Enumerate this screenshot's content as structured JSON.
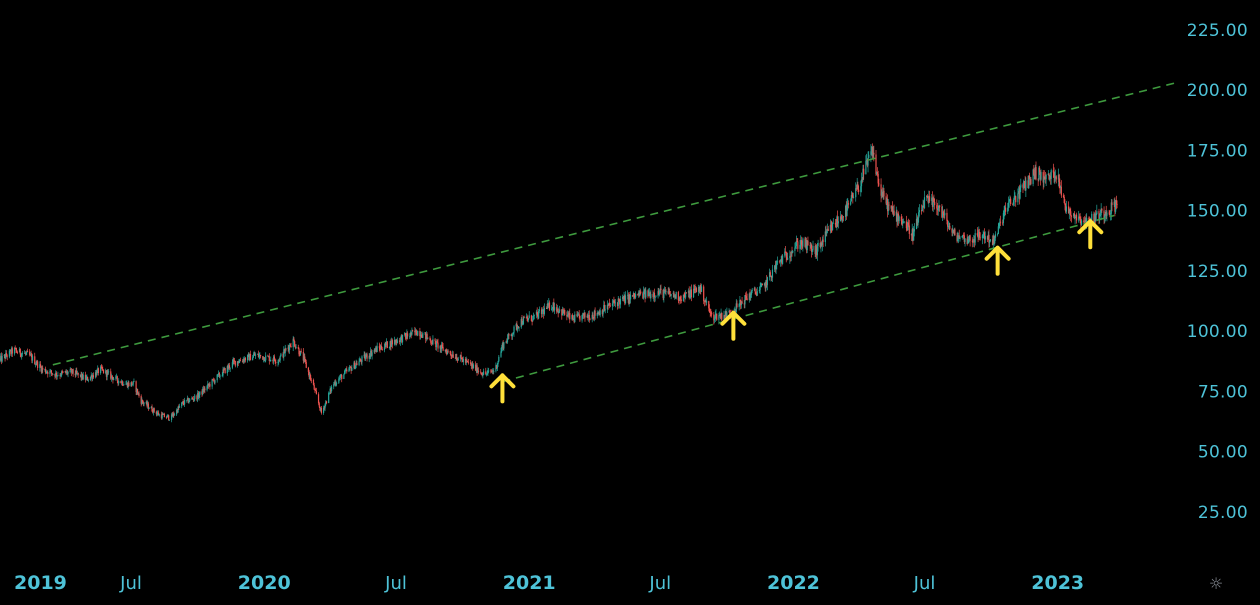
{
  "chart_data": {
    "type": "candlestick",
    "y_axis": {
      "position": "right",
      "ylim": [
        0,
        240
      ],
      "ticks": [
        {
          "value": 25,
          "label": "25.00"
        },
        {
          "value": 50,
          "label": "50.00"
        },
        {
          "value": 75,
          "label": "75.00"
        },
        {
          "value": 100,
          "label": "100.00"
        },
        {
          "value": 125,
          "label": "125.00"
        },
        {
          "value": 150,
          "label": "150.00"
        },
        {
          "value": 175,
          "label": "175.00"
        },
        {
          "value": 200,
          "label": "200.00"
        },
        {
          "value": 225,
          "label": "225.00"
        }
      ]
    },
    "x_axis": {
      "xlim": [
        "2019-01-01",
        "2023-06-12"
      ],
      "ticks": [
        {
          "date": "2019-01-01",
          "label": "2019",
          "major": true
        },
        {
          "date": "2019-07-01",
          "label": "Jul",
          "major": false
        },
        {
          "date": "2020-01-01",
          "label": "2020",
          "major": true
        },
        {
          "date": "2020-07-01",
          "label": "Jul",
          "major": false
        },
        {
          "date": "2021-01-01",
          "label": "2021",
          "major": true
        },
        {
          "date": "2021-07-01",
          "label": "Jul",
          "major": false
        },
        {
          "date": "2022-01-01",
          "label": "2022",
          "major": true
        },
        {
          "date": "2022-07-01",
          "label": "Jul",
          "major": false
        },
        {
          "date": "2023-01-01",
          "label": "2023",
          "major": true
        }
      ]
    },
    "price_path": [
      [
        "2019-01-01",
        88
      ],
      [
        "2019-01-20",
        92
      ],
      [
        "2019-02-10",
        90
      ],
      [
        "2019-03-01",
        84
      ],
      [
        "2019-03-20",
        82
      ],
      [
        "2019-04-10",
        83
      ],
      [
        "2019-05-01",
        80
      ],
      [
        "2019-05-20",
        84
      ],
      [
        "2019-06-10",
        80
      ],
      [
        "2019-06-25",
        78
      ],
      [
        "2019-07-05",
        78
      ],
      [
        "2019-07-15",
        71
      ],
      [
        "2019-08-10",
        65
      ],
      [
        "2019-08-25",
        64
      ],
      [
        "2019-09-10",
        70
      ],
      [
        "2019-10-01",
        73
      ],
      [
        "2019-10-25",
        80
      ],
      [
        "2019-11-20",
        87
      ],
      [
        "2019-12-20",
        90
      ],
      [
        "2020-01-20",
        88
      ],
      [
        "2020-02-10",
        96
      ],
      [
        "2020-02-25",
        88
      ],
      [
        "2020-03-10",
        76
      ],
      [
        "2020-03-20",
        66
      ],
      [
        "2020-04-05",
        78
      ],
      [
        "2020-05-01",
        85
      ],
      [
        "2020-06-01",
        92
      ],
      [
        "2020-07-01",
        96
      ],
      [
        "2020-08-01",
        100
      ],
      [
        "2020-09-01",
        93
      ],
      [
        "2020-10-01",
        88
      ],
      [
        "2020-11-01",
        82
      ],
      [
        "2020-11-15",
        84
      ],
      [
        "2020-11-25",
        94
      ],
      [
        "2020-12-20",
        104
      ],
      [
        "2021-01-10",
        106
      ],
      [
        "2021-02-01",
        111
      ],
      [
        "2021-03-01",
        105
      ],
      [
        "2021-04-01",
        107
      ],
      [
        "2021-05-01",
        112
      ],
      [
        "2021-06-01",
        115
      ],
      [
        "2021-07-01",
        116
      ],
      [
        "2021-08-01",
        114
      ],
      [
        "2021-08-25",
        118
      ],
      [
        "2021-09-10",
        106
      ],
      [
        "2021-10-01",
        107
      ],
      [
        "2021-10-15",
        110
      ],
      [
        "2021-11-01",
        115
      ],
      [
        "2021-11-20",
        118
      ],
      [
        "2021-12-10",
        128
      ],
      [
        "2022-01-10",
        137
      ],
      [
        "2022-02-01",
        133
      ],
      [
        "2022-02-20",
        142
      ],
      [
        "2022-03-15",
        150
      ],
      [
        "2022-04-01",
        160
      ],
      [
        "2022-04-20",
        175
      ],
      [
        "2022-05-01",
        158
      ],
      [
        "2022-05-15",
        150
      ],
      [
        "2022-06-01",
        146
      ],
      [
        "2022-06-15",
        140
      ],
      [
        "2022-07-01",
        154
      ],
      [
        "2022-07-20",
        152
      ],
      [
        "2022-08-10",
        140
      ],
      [
        "2022-09-01",
        138
      ],
      [
        "2022-09-20",
        140
      ],
      [
        "2022-10-05",
        137
      ],
      [
        "2022-10-20",
        150
      ],
      [
        "2022-11-10",
        158
      ],
      [
        "2022-12-01",
        166
      ],
      [
        "2022-12-15",
        163
      ],
      [
        "2023-01-01",
        166
      ],
      [
        "2023-01-10",
        152
      ],
      [
        "2023-01-25",
        148
      ],
      [
        "2023-02-10",
        145
      ],
      [
        "2023-02-25",
        148
      ],
      [
        "2023-03-10",
        150
      ],
      [
        "2023-03-25",
        153
      ]
    ],
    "trendlines": [
      {
        "name": "upper-channel",
        "style": "dashed",
        "color": "#3e9a3e",
        "from": [
          "2019-03-15",
          86
        ],
        "to": [
          "2023-06-12",
          203
        ]
      },
      {
        "name": "lower-channel",
        "style": "dashed",
        "color": "#3e9a3e",
        "from": [
          "2020-11-25",
          79
        ],
        "to": [
          "2023-03-20",
          148
        ]
      }
    ],
    "annotations": [
      {
        "type": "arrow-up",
        "date": "2020-11-25",
        "value": 70,
        "color": "#ffe03a"
      },
      {
        "type": "arrow-up",
        "date": "2021-10-10",
        "value": 96,
        "color": "#ffe03a"
      },
      {
        "type": "arrow-up",
        "date": "2022-10-10",
        "value": 123,
        "color": "#ffe03a"
      },
      {
        "type": "arrow-up",
        "date": "2023-02-15",
        "value": 134,
        "color": "#ffe03a"
      }
    ]
  },
  "colors": {
    "background": "#000000",
    "axis_text": "#4ec3d8",
    "candle_up": "#26a69a",
    "candle_down": "#ef5350",
    "trendline": "#3e9a3e",
    "arrow": "#ffe03a"
  },
  "icons": {
    "settings": "gear-icon"
  }
}
